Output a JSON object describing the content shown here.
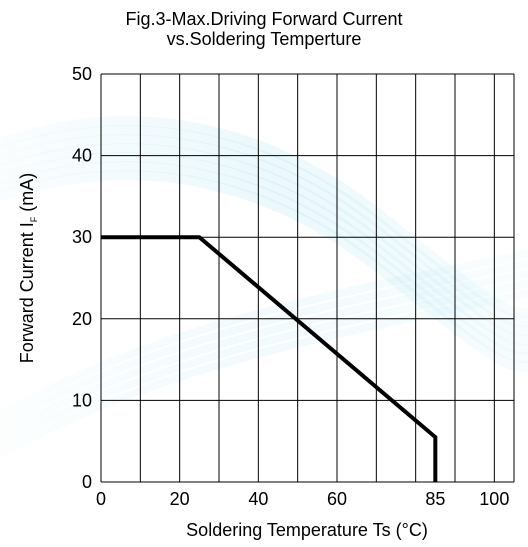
{
  "chart_data": {
    "type": "line",
    "title_lines": [
      "Fig.3-Max.Driving Forward Current",
      "vs.Soldering Temperture"
    ],
    "xlabel": "Soldering Temperature Ts (°C)",
    "ylabel": {
      "main": "Forward Current",
      "symbol": "I",
      "subscript": "F",
      "unit": "(mA)"
    },
    "xlim": [
      0,
      105
    ],
    "ylim": [
      0,
      50
    ],
    "x_gridlines": [
      0,
      10,
      20,
      30,
      40,
      50,
      60,
      70,
      80,
      90,
      100,
      105
    ],
    "y_gridlines": [
      0,
      10,
      20,
      30,
      40,
      50
    ],
    "x_ticks": [
      {
        "value": 0,
        "label": "0"
      },
      {
        "value": 20,
        "label": "20"
      },
      {
        "value": 40,
        "label": "40"
      },
      {
        "value": 60,
        "label": "60"
      },
      {
        "value": 85,
        "label": "85"
      },
      {
        "value": 100,
        "label": "100"
      }
    ],
    "y_ticks": [
      {
        "value": 0,
        "label": "0"
      },
      {
        "value": 10,
        "label": "10"
      },
      {
        "value": 20,
        "label": "20"
      },
      {
        "value": 30,
        "label": "30"
      },
      {
        "value": 40,
        "label": "40"
      },
      {
        "value": 50,
        "label": "50"
      }
    ],
    "grid": true,
    "series": [
      {
        "x": [
          0,
          25,
          85,
          85
        ],
        "y": [
          30,
          30,
          5.5,
          0
        ],
        "color": "#000000"
      }
    ]
  },
  "colors": {
    "grid": "#000000",
    "line": "#000000",
    "watermark": "#7fd3ee"
  }
}
